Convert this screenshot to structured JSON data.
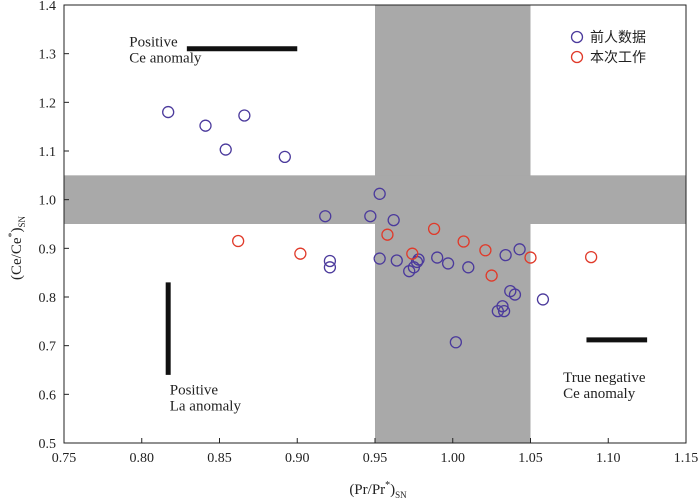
{
  "chart_data": {
    "type": "scatter",
    "xlabel": "(Pr/Pr*)SN",
    "xlabel_main": "(Pr/Pr",
    "xlabel_sup": "*",
    "xlabel_close": ")",
    "xlabel_sub": "SN",
    "ylabel": "(Ce/Ce*)SN",
    "ylabel_main": "(Ce/Ce",
    "ylabel_sup": "*",
    "ylabel_close": ")",
    "ylabel_sub": "SN",
    "xlim": [
      0.75,
      1.15
    ],
    "ylim": [
      0.5,
      1.4
    ],
    "xticks": [
      "0.75",
      "0.80",
      "0.85",
      "0.90",
      "0.95",
      "1.00",
      "1.05",
      "1.10",
      "1.15"
    ],
    "yticks": [
      "0.5",
      "0.6",
      "0.7",
      "0.8",
      "0.9",
      "1.0",
      "1.1",
      "1.2",
      "1.3",
      "1.4"
    ],
    "grid": false,
    "legend_position": "top-right",
    "shaded_bands": [
      {
        "axis": "x",
        "from": 0.95,
        "to": 1.05
      },
      {
        "axis": "y",
        "from": 0.95,
        "to": 1.05
      }
    ],
    "series": [
      {
        "name": "前人数据",
        "color": "#4b3a9c",
        "marker": "open-circle",
        "points": [
          [
            0.817,
            1.18
          ],
          [
            0.841,
            1.152
          ],
          [
            0.866,
            1.173
          ],
          [
            0.854,
            1.103
          ],
          [
            0.892,
            1.088
          ],
          [
            0.953,
            1.012
          ],
          [
            0.918,
            0.966
          ],
          [
            0.947,
            0.966
          ],
          [
            0.962,
            0.958
          ],
          [
            0.921,
            0.874
          ],
          [
            0.921,
            0.861
          ],
          [
            0.953,
            0.879
          ],
          [
            0.964,
            0.875
          ],
          [
            0.972,
            0.853
          ],
          [
            0.975,
            0.861
          ],
          [
            0.977,
            0.872
          ],
          [
            0.978,
            0.877
          ],
          [
            0.99,
            0.881
          ],
          [
            0.997,
            0.869
          ],
          [
            1.01,
            0.861
          ],
          [
            1.034,
            0.886
          ],
          [
            1.043,
            0.898
          ],
          [
            1.037,
            0.812
          ],
          [
            1.04,
            0.805
          ],
          [
            1.032,
            0.781
          ],
          [
            1.029,
            0.771
          ],
          [
            1.033,
            0.771
          ],
          [
            1.058,
            0.795
          ],
          [
            1.002,
            0.707
          ]
        ]
      },
      {
        "name": "本次工作",
        "color": "#e03a2a",
        "marker": "open-circle",
        "points": [
          [
            0.862,
            0.915
          ],
          [
            0.902,
            0.889
          ],
          [
            0.958,
            0.928
          ],
          [
            0.974,
            0.889
          ],
          [
            0.988,
            0.94
          ],
          [
            1.007,
            0.914
          ],
          [
            1.021,
            0.896
          ],
          [
            1.025,
            0.844
          ],
          [
            1.05,
            0.881
          ],
          [
            1.089,
            0.882
          ]
        ]
      }
    ],
    "annotations": [
      {
        "id": "pos-ce",
        "lines": [
          "Positive",
          "Ce anomaly"
        ],
        "bar": "horizontal",
        "bar_from": [
          0.829,
          1.31
        ],
        "bar_to": [
          0.9,
          1.31
        ],
        "text_at": [
          0.792,
          1.315
        ]
      },
      {
        "id": "pos-la",
        "lines": [
          "Positive",
          "La anomaly"
        ],
        "bar": "vertical",
        "bar_from": [
          0.817,
          0.83
        ],
        "bar_to": [
          0.817,
          0.64
        ],
        "text_at": [
          0.818,
          0.6
        ]
      },
      {
        "id": "true-neg",
        "lines": [
          "True negative",
          "Ce anomaly"
        ],
        "bar": "horizontal",
        "bar_from": [
          1.086,
          0.712
        ],
        "bar_to": [
          1.125,
          0.712
        ],
        "text_at": [
          1.071,
          0.625
        ]
      }
    ]
  }
}
